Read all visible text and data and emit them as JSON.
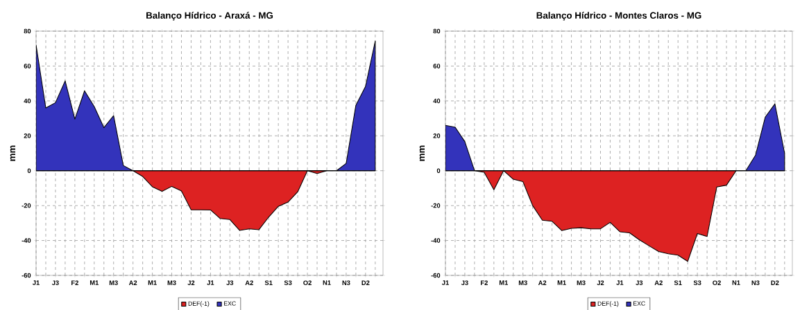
{
  "chart_data": [
    {
      "type": "area",
      "title": "Balanço Hídrico - Araxá - MG",
      "ylabel": "mm",
      "categories": [
        "J1",
        null,
        "J3",
        null,
        "F2",
        null,
        "M1",
        null,
        "M3",
        null,
        "A2",
        null,
        "M1",
        null,
        "M3",
        null,
        "J2",
        null,
        "J1",
        null,
        "J3",
        null,
        "A2",
        null,
        "S1",
        null,
        "S3",
        null,
        "O2",
        null,
        "N1",
        null,
        "N3",
        null,
        "D2",
        null
      ],
      "series": [
        {
          "name": "DEF(-1)",
          "color": "#dd2222",
          "values": [
            0,
            0,
            0,
            0,
            0,
            0,
            0,
            0,
            0,
            0,
            0,
            -3.3,
            -9.2,
            -11.8,
            -9,
            -11.6,
            -22.4,
            -22.4,
            -22.5,
            -27.4,
            -28,
            -34.2,
            -33.3,
            -33.8,
            -26.6,
            -20.4,
            -18,
            -12.1,
            0,
            -1.6,
            0,
            0,
            0,
            0,
            0,
            0
          ]
        },
        {
          "name": "EXC",
          "color": "#3333bb",
          "values": [
            72,
            36,
            39,
            51.5,
            29.6,
            45.8,
            36.8,
            24.7,
            31.6,
            3,
            0,
            0,
            0,
            0,
            0,
            0,
            0,
            0,
            0,
            0,
            0,
            0,
            0,
            0,
            0,
            0,
            0,
            0,
            0,
            0,
            0,
            0,
            4.2,
            37.5,
            48.4,
            74.3
          ]
        }
      ],
      "ylim": [
        -60,
        80
      ],
      "yticks": [
        -60,
        -40,
        -20,
        0,
        20,
        40,
        60,
        80
      ],
      "grid": true,
      "legend": "bottom"
    },
    {
      "type": "area",
      "title": "Balanço Hídrico - Montes Claros - MG",
      "ylabel": "mm",
      "categories": [
        "J1",
        null,
        "J3",
        null,
        "F2",
        null,
        "M1",
        null,
        "M3",
        null,
        "A2",
        null,
        "M1",
        null,
        "M3",
        null,
        "J2",
        null,
        "J1",
        null,
        "J3",
        null,
        "A2",
        null,
        "S1",
        null,
        "S3",
        null,
        "O2",
        null,
        "N1",
        null,
        "N3",
        null,
        "D2",
        null
      ],
      "series": [
        {
          "name": "DEF(-1)",
          "color": "#dd2222",
          "values": [
            0,
            0,
            0,
            0,
            -0.9,
            -10.9,
            0,
            -4.9,
            -6.3,
            -20,
            -28.4,
            -29,
            -34.3,
            -33,
            -32.7,
            -33.3,
            -33.3,
            -29.6,
            -35,
            -35.6,
            -39.6,
            -43,
            -46.3,
            -47.6,
            -48.4,
            -52,
            -36,
            -37.7,
            -9.3,
            -8.3,
            0,
            0,
            0,
            0,
            0,
            0
          ]
        },
        {
          "name": "EXC",
          "color": "#3333bb",
          "values": [
            26,
            25,
            16.7,
            0,
            0,
            0,
            0,
            0,
            0,
            0,
            0,
            0,
            0,
            0,
            0,
            0,
            0,
            0,
            0,
            0,
            0,
            0,
            0,
            0,
            0,
            0,
            0,
            0,
            0,
            0,
            0,
            0,
            8.9,
            30.7,
            38.3,
            10
          ]
        }
      ],
      "ylim": [
        -60,
        80
      ],
      "yticks": [
        -60,
        -40,
        -20,
        0,
        20,
        40,
        60,
        80
      ],
      "grid": true,
      "legend": "bottom"
    }
  ]
}
